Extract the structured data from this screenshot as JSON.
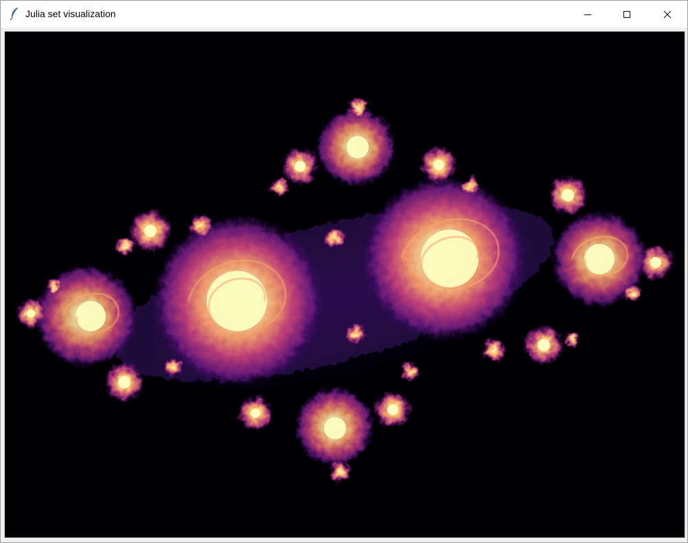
{
  "window": {
    "title": "Julia set visualization",
    "app_icon": "feather-icon",
    "controls": {
      "minimize_icon": "minimize-icon",
      "maximize_icon": "maximize-icon",
      "close_icon": "close-icon"
    }
  },
  "canvas": {
    "content": "julia-set-fractal",
    "background_color": "#000003",
    "palette": [
      "#000004",
      "#2a0a5e",
      "#6a1a7a",
      "#b8377a",
      "#f06e5a",
      "#fbb36a",
      "#fcfdbf"
    ]
  }
}
